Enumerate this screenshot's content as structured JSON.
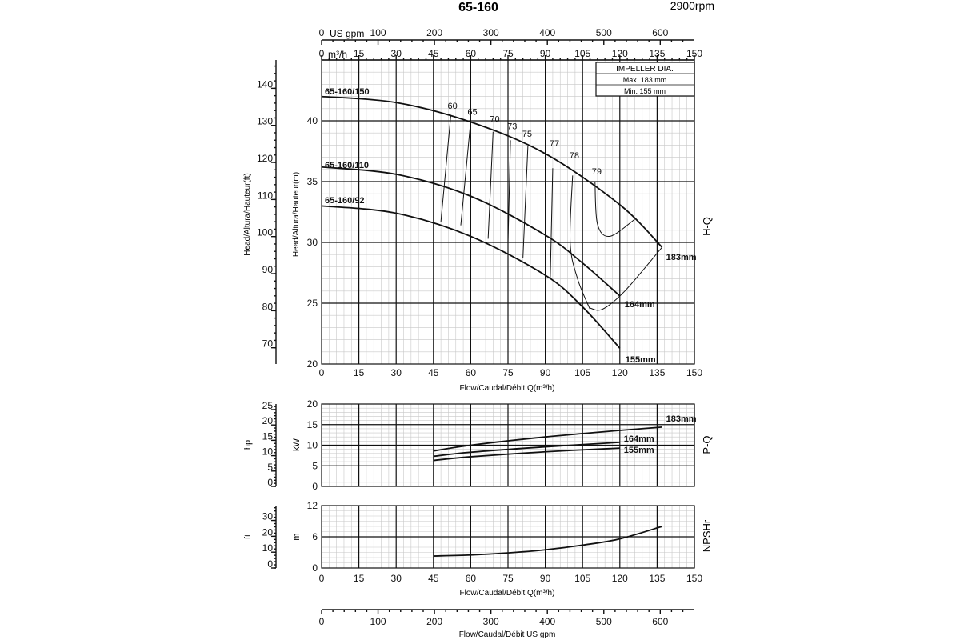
{
  "title": "65-160",
  "speed": "2900rpm",
  "impeller_box": {
    "heading": "IMPELLER DIA.",
    "max": "Max.  183  mm",
    "min": "Min.   155  mm"
  },
  "top_axes": {
    "gpm_label": "US gpm",
    "gpm_ticks": [
      "0",
      "100",
      "200",
      "300",
      "400",
      "500",
      "600"
    ],
    "m3h_label": "m³/h",
    "m3h_ticks": [
      "0",
      "15",
      "30",
      "45",
      "60",
      "75",
      "90",
      "105",
      "120",
      "135",
      "150"
    ]
  },
  "side_labels": {
    "hq": "H-Q",
    "pq": "P-Q",
    "npsh": "NPSHr"
  },
  "flow_label": "Flow/Caudal/Débit Q(m³/h)",
  "bottom_gpm_label": "Flow/Caudal/Débit  US gpm",
  "chart_data": [
    {
      "type": "line",
      "name": "H-Q",
      "xlabel": "Flow/Caudal/Débit Q(m³/h)",
      "ylabel": "Head/Altura/Hauteur(m)",
      "ylabel_secondary": "Head/Altura/Hauteur(ft)",
      "xlim": [
        0,
        150
      ],
      "ylim": [
        20,
        45
      ],
      "x_ticks": [
        "0",
        "15",
        "30",
        "45",
        "60",
        "75",
        "90",
        "105",
        "120",
        "135",
        "150"
      ],
      "y_ticks": [
        "20",
        "25",
        "30",
        "35",
        "40"
      ],
      "y2_ticks": [
        "70",
        "80",
        "90",
        "100",
        "110",
        "120",
        "130",
        "140"
      ],
      "series": [
        {
          "name": "65-160/150",
          "end_label": "183mm",
          "x": [
            0,
            30,
            60,
            90,
            120,
            137
          ],
          "y": [
            42.0,
            41.5,
            39.9,
            37.3,
            33.1,
            29.6
          ]
        },
        {
          "name": "65-160/110",
          "end_label": "164mm",
          "x": [
            0,
            30,
            60,
            90,
            105,
            120
          ],
          "y": [
            36.2,
            35.6,
            33.8,
            30.6,
            28.3,
            25.6
          ]
        },
        {
          "name": "65-160/92",
          "end_label": "155mm",
          "x": [
            0,
            30,
            60,
            90,
            105,
            120
          ],
          "y": [
            33.0,
            32.4,
            30.5,
            27.3,
            24.7,
            21.3
          ]
        }
      ],
      "efficiency_labels": [
        "60",
        "65",
        "70",
        "73",
        "75",
        "77",
        "78",
        "79"
      ],
      "efficiency_lines": [
        {
          "x": [
            52,
            48
          ],
          "y": [
            40.5,
            31.7
          ]
        },
        {
          "x": [
            60,
            56
          ],
          "y": [
            40.0,
            31.4
          ]
        },
        {
          "x": [
            69,
            67
          ],
          "y": [
            39.1,
            30.3
          ]
        },
        {
          "x": [
            76,
            75
          ],
          "y": [
            38.4,
            30.0
          ]
        },
        {
          "x": [
            83,
            81
          ],
          "y": [
            37.9,
            28.7
          ]
        },
        {
          "x": [
            93,
            92
          ],
          "y": [
            36.1,
            27.0
          ]
        },
        {
          "x": [
            101,
            100,
            103,
            108
          ],
          "y": [
            35.5,
            30.0,
            27.0,
            24.5
          ]
        },
        {
          "x": [
            110,
            111,
            116,
            126
          ],
          "y": [
            35.0,
            31.5,
            30.5,
            31.9
          ]
        },
        {
          "x": [
            108,
            113,
            122,
            137
          ],
          "y": [
            24.6,
            24.5,
            26.0,
            29.6
          ]
        }
      ]
    },
    {
      "type": "line",
      "name": "P-Q",
      "xlim": [
        0,
        150
      ],
      "ylim": [
        0,
        20
      ],
      "ylabel": "kW",
      "ylabel_secondary": "hp",
      "y_ticks": [
        "0",
        "5",
        "10",
        "15",
        "20"
      ],
      "y2_ticks": [
        "0",
        "5",
        "10",
        "15",
        "20",
        "25"
      ],
      "series": [
        {
          "name": "183mm",
          "x": [
            45,
            60,
            90,
            120,
            137
          ],
          "y": [
            8.6,
            10.0,
            12.0,
            13.6,
            14.4
          ]
        },
        {
          "name": "164mm",
          "x": [
            45,
            60,
            90,
            120
          ],
          "y": [
            7.3,
            8.3,
            9.6,
            10.7
          ]
        },
        {
          "name": "155mm",
          "x": [
            45,
            60,
            90,
            120
          ],
          "y": [
            6.3,
            7.2,
            8.4,
            9.3
          ]
        }
      ]
    },
    {
      "type": "line",
      "name": "NPSHr",
      "xlim": [
        0,
        150
      ],
      "ylim": [
        0,
        12
      ],
      "ylabel": "m",
      "ylabel_secondary": "ft",
      "y_ticks": [
        "0",
        "6",
        "12"
      ],
      "y2_ticks": [
        "0",
        "10",
        "20",
        "30"
      ],
      "x_ticks": [
        "0",
        "15",
        "30",
        "45",
        "60",
        "75",
        "90",
        "105",
        "120",
        "135",
        "150"
      ],
      "series": [
        {
          "name": "NPSHr",
          "x": [
            45,
            60,
            75,
            90,
            105,
            120,
            137
          ],
          "y": [
            2.3,
            2.5,
            2.9,
            3.5,
            4.4,
            5.6,
            8.0
          ]
        }
      ]
    }
  ],
  "bottom_gpm_ticks": [
    "0",
    "100",
    "200",
    "300",
    "400",
    "500",
    "600"
  ]
}
